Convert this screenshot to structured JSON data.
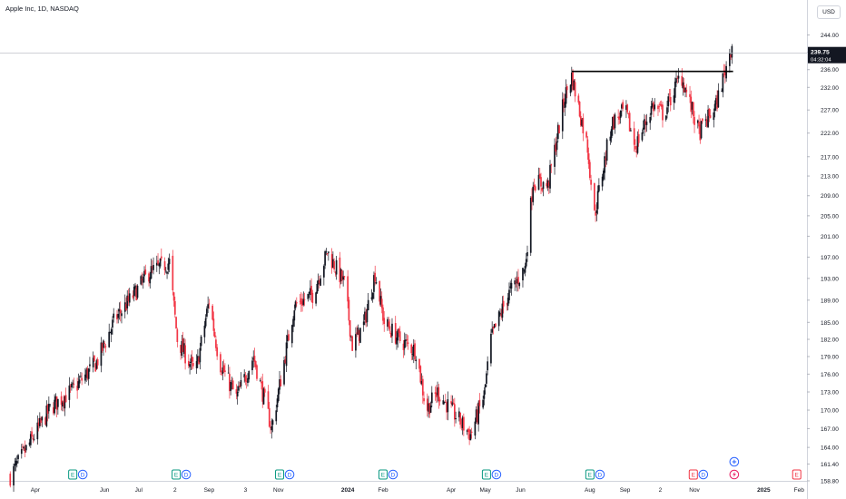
{
  "title": "Apple Inc, 1D, NASDAQ",
  "currency": "USD",
  "price_label": {
    "value": "239.75",
    "countdown": "04:32:04"
  },
  "colors": {
    "up": "#131722",
    "down": "#f23645",
    "resistance": "#000000",
    "earnings": "#089981",
    "dividend": "#2962ff",
    "next_earnings": "#f23645"
  },
  "chart_data": {
    "type": "candlestick",
    "title": "Apple Inc, 1D, NASDAQ",
    "xlabel": "",
    "ylabel": "",
    "ylim": [
      158.8,
      248.0
    ],
    "scale": "log",
    "grid": false,
    "y_ticks": [
      "244.00",
      "240.00",
      "236.00",
      "232.00",
      "227.00",
      "222.00",
      "217.00",
      "213.00",
      "209.00",
      "205.00",
      "201.00",
      "197.00",
      "193.00",
      "189.00",
      "185.00",
      "182.00",
      "179.00",
      "176.00",
      "173.00",
      "170.00",
      "167.00",
      "164.00",
      "161.40",
      "158.80"
    ],
    "x_ticks": [
      {
        "label": "Apr",
        "date": "2023-04-01"
      },
      {
        "label": "Jun",
        "date": "2023-06-01"
      },
      {
        "label": "Jul",
        "date": "2023-07-01"
      },
      {
        "label": "2",
        "date": "2023-08-02"
      },
      {
        "label": "Sep",
        "date": "2023-09-01"
      },
      {
        "label": "3",
        "date": "2023-10-03"
      },
      {
        "label": "Nov",
        "date": "2023-11-01"
      },
      {
        "label": "2024",
        "date": "2024-01-01"
      },
      {
        "label": "Feb",
        "date": "2024-02-01"
      },
      {
        "label": "Apr",
        "date": "2024-04-01"
      },
      {
        "label": "May",
        "date": "2024-05-01"
      },
      {
        "label": "Jun",
        "date": "2024-06-01"
      },
      {
        "label": "Aug",
        "date": "2024-08-01"
      },
      {
        "label": "Sep",
        "date": "2024-09-01"
      },
      {
        "label": "2",
        "date": "2024-10-02"
      },
      {
        "label": "Nov",
        "date": "2024-11-01"
      },
      {
        "label": "2025",
        "date": "2025-01-01"
      },
      {
        "label": "Feb",
        "date": "2025-02-01"
      }
    ],
    "trend": [
      {
        "date": "2023-03-10",
        "close": 159.5
      },
      {
        "date": "2023-03-25",
        "close": 164.0
      },
      {
        "date": "2023-04-15",
        "close": 170.5
      },
      {
        "date": "2023-05-05",
        "close": 173.5
      },
      {
        "date": "2023-05-25",
        "close": 178.0
      },
      {
        "date": "2023-06-10",
        "close": 185.5
      },
      {
        "date": "2023-06-25",
        "close": 189.5
      },
      {
        "date": "2023-07-10",
        "close": 194.0
      },
      {
        "date": "2023-07-28",
        "close": 196.0
      },
      {
        "date": "2023-08-04",
        "close": 182.0
      },
      {
        "date": "2023-08-20",
        "close": 176.0
      },
      {
        "date": "2023-09-01",
        "close": 189.0
      },
      {
        "date": "2023-09-10",
        "close": 178.0
      },
      {
        "date": "2023-09-25",
        "close": 172.0
      },
      {
        "date": "2023-10-10",
        "close": 179.0
      },
      {
        "date": "2023-10-26",
        "close": 167.0
      },
      {
        "date": "2023-11-15",
        "close": 188.0
      },
      {
        "date": "2023-12-01",
        "close": 190.0
      },
      {
        "date": "2023-12-14",
        "close": 198.0
      },
      {
        "date": "2023-12-29",
        "close": 192.0
      },
      {
        "date": "2024-01-05",
        "close": 181.0
      },
      {
        "date": "2024-01-15",
        "close": 184.5
      },
      {
        "date": "2024-01-25",
        "close": 194.0
      },
      {
        "date": "2024-02-02",
        "close": 185.0
      },
      {
        "date": "2024-02-15",
        "close": 182.0
      },
      {
        "date": "2024-03-01",
        "close": 180.0
      },
      {
        "date": "2024-03-10",
        "close": 170.0
      },
      {
        "date": "2024-03-20",
        "close": 173.0
      },
      {
        "date": "2024-04-01",
        "close": 170.0
      },
      {
        "date": "2024-04-18",
        "close": 166.0
      },
      {
        "date": "2024-04-30",
        "close": 172.5
      },
      {
        "date": "2024-05-06",
        "close": 182.0
      },
      {
        "date": "2024-05-20",
        "close": 189.5
      },
      {
        "date": "2024-06-05",
        "close": 195.0
      },
      {
        "date": "2024-06-12",
        "close": 212.0
      },
      {
        "date": "2024-06-25",
        "close": 211.0
      },
      {
        "date": "2024-07-10",
        "close": 230.0
      },
      {
        "date": "2024-07-16",
        "close": 234.5
      },
      {
        "date": "2024-07-30",
        "close": 219.0
      },
      {
        "date": "2024-08-05",
        "close": 205.0
      },
      {
        "date": "2024-08-20",
        "close": 224.0
      },
      {
        "date": "2024-09-01",
        "close": 227.0
      },
      {
        "date": "2024-09-10",
        "close": 219.0
      },
      {
        "date": "2024-09-25",
        "close": 228.0
      },
      {
        "date": "2024-10-05",
        "close": 226.0
      },
      {
        "date": "2024-10-20",
        "close": 235.0
      },
      {
        "date": "2024-10-31",
        "close": 226.0
      },
      {
        "date": "2024-11-05",
        "close": 222.0
      },
      {
        "date": "2024-11-20",
        "close": 228.0
      },
      {
        "date": "2024-12-05",
        "close": 243.0
      }
    ],
    "resistance": {
      "from": "2024-07-16",
      "to": "2024-12-05",
      "price": 235.6
    },
    "events": [
      {
        "date": "2023-05-04",
        "items": [
          {
            "type": "earnings",
            "label": "E"
          },
          {
            "type": "dividend",
            "label": "D"
          }
        ]
      },
      {
        "date": "2023-08-03",
        "items": [
          {
            "type": "earnings",
            "label": "E"
          },
          {
            "type": "dividend",
            "label": "D"
          }
        ]
      },
      {
        "date": "2023-11-02",
        "items": [
          {
            "type": "earnings",
            "label": "E"
          },
          {
            "type": "dividend",
            "label": "D"
          }
        ]
      },
      {
        "date": "2024-02-01",
        "items": [
          {
            "type": "earnings",
            "label": "E"
          },
          {
            "type": "dividend",
            "label": "D"
          }
        ]
      },
      {
        "date": "2024-05-02",
        "items": [
          {
            "type": "earnings",
            "label": "E"
          },
          {
            "type": "dividend",
            "label": "D"
          }
        ]
      },
      {
        "date": "2024-08-01",
        "items": [
          {
            "type": "earnings",
            "label": "E"
          },
          {
            "type": "dividend",
            "label": "D"
          }
        ]
      },
      {
        "date": "2024-10-31",
        "items": [
          {
            "type": "next_earnings",
            "label": "E"
          },
          {
            "type": "dividend",
            "label": "D"
          }
        ]
      },
      {
        "date": "2025-01-30",
        "items": [
          {
            "type": "next_earnings",
            "label": "E"
          }
        ]
      }
    ],
    "extra_markers": [
      {
        "date": "2024-12-06",
        "type": "split-icon"
      },
      {
        "date": "2024-12-06",
        "type": "flash-icon"
      }
    ]
  }
}
